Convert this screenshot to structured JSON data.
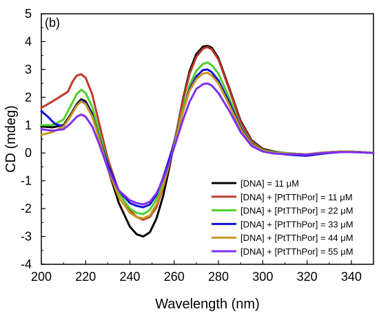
{
  "chart_data": {
    "type": "line",
    "panel_label": "(b)",
    "xlabel": "Wavelength (nm)",
    "ylabel": "CD (mdeg)",
    "xlim": [
      200,
      350
    ],
    "ylim": [
      -4,
      5
    ],
    "x_ticks": [
      200,
      220,
      240,
      260,
      280,
      300,
      320,
      340
    ],
    "y_ticks": [
      5,
      4,
      3,
      2,
      1,
      0,
      -1,
      -2,
      -3,
      -4
    ],
    "grid": false,
    "legend_position": "bottom-right",
    "series": [
      {
        "name": "[DNA] = 11 μM",
        "color": "#000000",
        "points": [
          [
            200,
            0.95
          ],
          [
            205,
            0.92
          ],
          [
            210,
            1.0
          ],
          [
            213,
            1.35
          ],
          [
            216,
            1.75
          ],
          [
            218,
            1.93
          ],
          [
            220,
            1.85
          ],
          [
            223,
            1.4
          ],
          [
            226,
            0.55
          ],
          [
            230,
            -0.55
          ],
          [
            235,
            -1.8
          ],
          [
            240,
            -2.65
          ],
          [
            243,
            -2.92
          ],
          [
            246,
            -3.0
          ],
          [
            249,
            -2.85
          ],
          [
            252,
            -2.35
          ],
          [
            255,
            -1.55
          ],
          [
            258,
            -0.45
          ],
          [
            261,
            0.75
          ],
          [
            264,
            1.95
          ],
          [
            267,
            2.95
          ],
          [
            270,
            3.55
          ],
          [
            273,
            3.82
          ],
          [
            275,
            3.85
          ],
          [
            277,
            3.78
          ],
          [
            280,
            3.4
          ],
          [
            285,
            2.3
          ],
          [
            290,
            1.15
          ],
          [
            295,
            0.45
          ],
          [
            300,
            0.15
          ],
          [
            305,
            0.05
          ],
          [
            310,
            0.0
          ],
          [
            315,
            -0.03
          ],
          [
            320,
            -0.05
          ],
          [
            325,
            0.0
          ],
          [
            330,
            0.03
          ],
          [
            335,
            0.05
          ],
          [
            340,
            0.05
          ],
          [
            345,
            0.03
          ],
          [
            350,
            0.0
          ]
        ]
      },
      {
        "name": "[DNA] + [PtTThPor] = 11 μM",
        "color": "#c0392b",
        "points": [
          [
            200,
            1.62
          ],
          [
            205,
            1.85
          ],
          [
            210,
            2.1
          ],
          [
            212,
            2.2
          ],
          [
            214,
            2.55
          ],
          [
            216,
            2.78
          ],
          [
            218,
            2.83
          ],
          [
            220,
            2.7
          ],
          [
            223,
            2.1
          ],
          [
            226,
            1.1
          ],
          [
            230,
            -0.2
          ],
          [
            235,
            -1.4
          ],
          [
            240,
            -2.05
          ],
          [
            243,
            -2.3
          ],
          [
            246,
            -2.4
          ],
          [
            249,
            -2.3
          ],
          [
            252,
            -1.95
          ],
          [
            255,
            -1.25
          ],
          [
            258,
            -0.3
          ],
          [
            261,
            0.75
          ],
          [
            264,
            1.9
          ],
          [
            267,
            2.85
          ],
          [
            270,
            3.45
          ],
          [
            273,
            3.75
          ],
          [
            275,
            3.8
          ],
          [
            277,
            3.72
          ],
          [
            280,
            3.35
          ],
          [
            285,
            2.25
          ],
          [
            290,
            1.1
          ],
          [
            295,
            0.42
          ],
          [
            300,
            0.12
          ],
          [
            305,
            0.03
          ],
          [
            310,
            0.0
          ],
          [
            315,
            -0.03
          ],
          [
            320,
            -0.05
          ],
          [
            325,
            0.0
          ],
          [
            330,
            0.03
          ],
          [
            335,
            0.05
          ],
          [
            340,
            0.05
          ],
          [
            345,
            0.03
          ],
          [
            350,
            0.0
          ]
        ]
      },
      {
        "name": "[DNA] + [PtTThPor] = 22 μM",
        "color": "#4cd12c",
        "points": [
          [
            200,
            1.0
          ],
          [
            205,
            1.0
          ],
          [
            210,
            1.2
          ],
          [
            213,
            1.65
          ],
          [
            216,
            2.12
          ],
          [
            218,
            2.27
          ],
          [
            220,
            2.15
          ],
          [
            223,
            1.65
          ],
          [
            226,
            0.8
          ],
          [
            230,
            -0.35
          ],
          [
            235,
            -1.45
          ],
          [
            240,
            -2.0
          ],
          [
            243,
            -2.15
          ],
          [
            246,
            -2.2
          ],
          [
            249,
            -2.05
          ],
          [
            252,
            -1.65
          ],
          [
            255,
            -1.0
          ],
          [
            258,
            -0.2
          ],
          [
            261,
            0.7
          ],
          [
            264,
            1.6
          ],
          [
            267,
            2.45
          ],
          [
            270,
            2.95
          ],
          [
            273,
            3.2
          ],
          [
            275,
            3.25
          ],
          [
            277,
            3.15
          ],
          [
            280,
            2.85
          ],
          [
            285,
            1.95
          ],
          [
            290,
            0.95
          ],
          [
            295,
            0.35
          ],
          [
            300,
            0.1
          ],
          [
            305,
            0.02
          ],
          [
            310,
            0.0
          ],
          [
            315,
            -0.03
          ],
          [
            320,
            -0.05
          ],
          [
            325,
            0.0
          ],
          [
            330,
            0.03
          ],
          [
            335,
            0.05
          ],
          [
            340,
            0.05
          ],
          [
            345,
            0.03
          ],
          [
            350,
            0.0
          ]
        ]
      },
      {
        "name": "[DNA] + [PtTThPor] = 33 μM",
        "color": "#1010d8",
        "points": [
          [
            200,
            1.5
          ],
          [
            203,
            1.3
          ],
          [
            206,
            1.05
          ],
          [
            210,
            0.95
          ],
          [
            213,
            1.3
          ],
          [
            216,
            1.72
          ],
          [
            218,
            1.88
          ],
          [
            220,
            1.8
          ],
          [
            223,
            1.35
          ],
          [
            226,
            0.6
          ],
          [
            230,
            -0.4
          ],
          [
            235,
            -1.35
          ],
          [
            240,
            -1.8
          ],
          [
            243,
            -1.9
          ],
          [
            246,
            -1.95
          ],
          [
            249,
            -1.85
          ],
          [
            252,
            -1.5
          ],
          [
            255,
            -0.9
          ],
          [
            258,
            -0.15
          ],
          [
            261,
            0.65
          ],
          [
            264,
            1.5
          ],
          [
            267,
            2.3
          ],
          [
            270,
            2.75
          ],
          [
            273,
            2.98
          ],
          [
            275,
            3.0
          ],
          [
            277,
            2.9
          ],
          [
            280,
            2.6
          ],
          [
            285,
            1.8
          ],
          [
            290,
            0.9
          ],
          [
            295,
            0.32
          ],
          [
            300,
            0.08
          ],
          [
            305,
            0.0
          ],
          [
            310,
            -0.05
          ],
          [
            315,
            -0.08
          ],
          [
            320,
            -0.1
          ],
          [
            325,
            -0.05
          ],
          [
            330,
            0.0
          ],
          [
            335,
            0.03
          ],
          [
            340,
            0.03
          ],
          [
            345,
            0.02
          ],
          [
            350,
            0.0
          ]
        ]
      },
      {
        "name": "[DNA] + [PtTThPor] = 44 μM",
        "color": "#c8961e",
        "points": [
          [
            200,
            0.65
          ],
          [
            205,
            0.75
          ],
          [
            210,
            0.95
          ],
          [
            213,
            1.3
          ],
          [
            216,
            1.7
          ],
          [
            218,
            1.85
          ],
          [
            220,
            1.75
          ],
          [
            223,
            1.3
          ],
          [
            226,
            0.55
          ],
          [
            230,
            -0.55
          ],
          [
            235,
            -1.6
          ],
          [
            240,
            -2.15
          ],
          [
            243,
            -2.3
          ],
          [
            246,
            -2.35
          ],
          [
            249,
            -2.25
          ],
          [
            252,
            -1.85
          ],
          [
            255,
            -1.2
          ],
          [
            258,
            -0.35
          ],
          [
            261,
            0.6
          ],
          [
            264,
            1.5
          ],
          [
            267,
            2.25
          ],
          [
            270,
            2.65
          ],
          [
            273,
            2.85
          ],
          [
            275,
            2.88
          ],
          [
            277,
            2.78
          ],
          [
            280,
            2.5
          ],
          [
            285,
            1.7
          ],
          [
            290,
            0.85
          ],
          [
            295,
            0.3
          ],
          [
            300,
            0.08
          ],
          [
            305,
            0.0
          ],
          [
            310,
            -0.02
          ],
          [
            315,
            -0.04
          ],
          [
            320,
            -0.05
          ],
          [
            325,
            0.0
          ],
          [
            330,
            0.03
          ],
          [
            335,
            0.05
          ],
          [
            340,
            0.05
          ],
          [
            345,
            0.03
          ],
          [
            350,
            0.0
          ]
        ]
      },
      {
        "name": "[DNA] + [PtTThPor] = 55 μM",
        "color": "#7f2ff0",
        "points": [
          [
            200,
            0.85
          ],
          [
            205,
            0.8
          ],
          [
            210,
            0.85
          ],
          [
            213,
            1.05
          ],
          [
            216,
            1.3
          ],
          [
            218,
            1.38
          ],
          [
            220,
            1.3
          ],
          [
            223,
            0.95
          ],
          [
            226,
            0.35
          ],
          [
            230,
            -0.55
          ],
          [
            235,
            -1.35
          ],
          [
            240,
            -1.7
          ],
          [
            243,
            -1.8
          ],
          [
            246,
            -1.85
          ],
          [
            249,
            -1.75
          ],
          [
            252,
            -1.45
          ],
          [
            255,
            -0.95
          ],
          [
            258,
            -0.3
          ],
          [
            261,
            0.45
          ],
          [
            264,
            1.2
          ],
          [
            267,
            1.85
          ],
          [
            270,
            2.3
          ],
          [
            273,
            2.47
          ],
          [
            275,
            2.5
          ],
          [
            277,
            2.42
          ],
          [
            280,
            2.15
          ],
          [
            285,
            1.5
          ],
          [
            290,
            0.75
          ],
          [
            295,
            0.25
          ],
          [
            300,
            0.05
          ],
          [
            305,
            -0.02
          ],
          [
            310,
            -0.04
          ],
          [
            315,
            -0.05
          ],
          [
            320,
            -0.06
          ],
          [
            325,
            -0.02
          ],
          [
            330,
            0.01
          ],
          [
            335,
            0.03
          ],
          [
            340,
            0.03
          ],
          [
            345,
            0.02
          ],
          [
            350,
            0.0
          ]
        ]
      }
    ]
  }
}
